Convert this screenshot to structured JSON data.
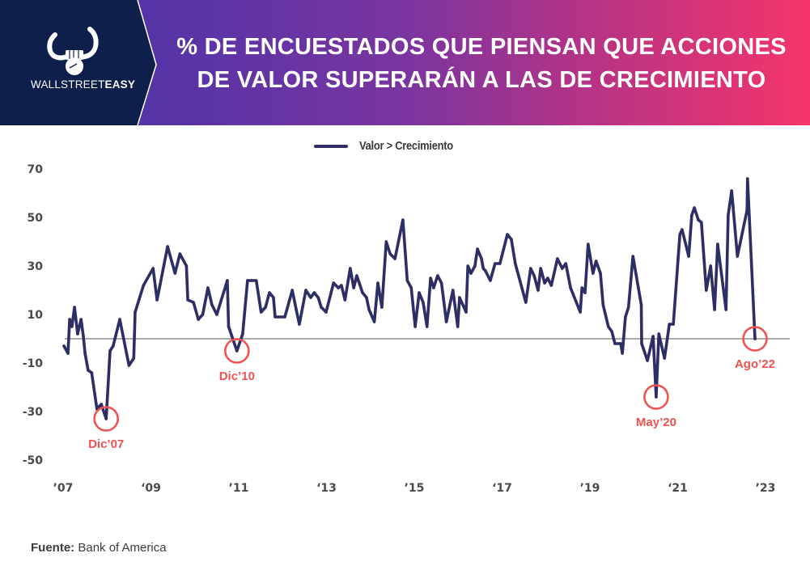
{
  "brand": {
    "logo_icon": "bull-horns-fist-icon",
    "name_light": "WALLSTREET",
    "name_bold": "EASY"
  },
  "header": {
    "title_line1": "% DE ENCUESTADOS QUE PIENSAN QUE ACCIONES",
    "title_line2": "DE VALOR SUPERARÁN A LAS DE CRECIMIENTO",
    "colors": {
      "brand_panel": "#0f1f4b",
      "gradient_start": "#4534a8",
      "gradient_mid": "#7a35a0",
      "gradient_end": "#f5356a"
    }
  },
  "source": {
    "label": "Fuente:",
    "value": "Bank of America"
  },
  "chart_data": {
    "type": "line",
    "title": "% de encuestados que piensan que acciones de valor superarán a las de crecimiento",
    "xlabel": "",
    "ylabel": "",
    "xlim": [
      2007,
      2023
    ],
    "ylim": [
      -50,
      70
    ],
    "grid": false,
    "reference_line": 0,
    "legend": {
      "position": "top-center",
      "entries": [
        "Valor > Crecimiento"
      ]
    },
    "x_ticks": [
      {
        "value": 2007,
        "label": "’07"
      },
      {
        "value": 2009,
        "label": "‘09"
      },
      {
        "value": 2011,
        "label": "’11"
      },
      {
        "value": 2013,
        "label": "‘13"
      },
      {
        "value": 2015,
        "label": "’15"
      },
      {
        "value": 2017,
        "label": "‘17"
      },
      {
        "value": 2019,
        "label": "’19"
      },
      {
        "value": 2021,
        "label": "‘21"
      },
      {
        "value": 2023,
        "label": "’23"
      }
    ],
    "y_ticks": [
      70,
      50,
      30,
      10,
      -10,
      -30,
      -50
    ],
    "colors": {
      "series": "#2d2e66",
      "annotation": "#f0524f",
      "zero_line": "#777777",
      "tick_text": "#4a4a4a"
    },
    "series": [
      {
        "name": "Valor > Crecimiento",
        "points": [
          [
            2007.02,
            -3
          ],
          [
            2007.11,
            -6
          ],
          [
            2007.15,
            8
          ],
          [
            2007.2,
            5
          ],
          [
            2007.26,
            13
          ],
          [
            2007.33,
            2
          ],
          [
            2007.41,
            8
          ],
          [
            2007.46,
            1
          ],
          [
            2007.5,
            -6
          ],
          [
            2007.57,
            -13
          ],
          [
            2007.65,
            -14
          ],
          [
            2007.77,
            -29
          ],
          [
            2007.87,
            -27
          ],
          [
            2007.98,
            -33
          ],
          [
            2008.07,
            -5
          ],
          [
            2008.14,
            -3
          ],
          [
            2008.29,
            8
          ],
          [
            2008.5,
            -11
          ],
          [
            2008.61,
            -8
          ],
          [
            2008.64,
            11
          ],
          [
            2008.83,
            22
          ],
          [
            2009.05,
            29
          ],
          [
            2009.14,
            16
          ],
          [
            2009.38,
            38
          ],
          [
            2009.55,
            27
          ],
          [
            2009.66,
            35
          ],
          [
            2009.81,
            30
          ],
          [
            2009.84,
            16
          ],
          [
            2009.97,
            15
          ],
          [
            2010.08,
            8
          ],
          [
            2010.18,
            10
          ],
          [
            2010.3,
            21
          ],
          [
            2010.39,
            14
          ],
          [
            2010.5,
            10
          ],
          [
            2010.74,
            24
          ],
          [
            2010.74,
            24
          ],
          [
            2010.77,
            5
          ],
          [
            2010.96,
            -5
          ],
          [
            2011.09,
            2
          ],
          [
            2011.2,
            24
          ],
          [
            2011.29,
            24
          ],
          [
            2011.4,
            24
          ],
          [
            2011.51,
            11
          ],
          [
            2011.61,
            13
          ],
          [
            2011.7,
            19
          ],
          [
            2011.79,
            17
          ],
          [
            2011.83,
            9
          ],
          [
            2012.05,
            9
          ],
          [
            2012.22,
            20
          ],
          [
            2012.31,
            12
          ],
          [
            2012.38,
            6
          ],
          [
            2012.53,
            20
          ],
          [
            2012.64,
            17
          ],
          [
            2012.72,
            19
          ],
          [
            2012.81,
            17
          ],
          [
            2012.88,
            13
          ],
          [
            2012.99,
            11
          ],
          [
            2013.16,
            23
          ],
          [
            2013.27,
            21
          ],
          [
            2013.34,
            22
          ],
          [
            2013.42,
            16
          ],
          [
            2013.54,
            29
          ],
          [
            2013.62,
            21
          ],
          [
            2013.69,
            26
          ],
          [
            2013.82,
            19
          ],
          [
            2013.91,
            17
          ],
          [
            2013.97,
            12
          ],
          [
            2014.09,
            7
          ],
          [
            2014.17,
            23
          ],
          [
            2014.26,
            13
          ],
          [
            2014.36,
            40
          ],
          [
            2014.45,
            35
          ],
          [
            2014.56,
            33
          ],
          [
            2014.74,
            49
          ],
          [
            2014.84,
            24
          ],
          [
            2014.93,
            21
          ],
          [
            2015.02,
            5
          ],
          [
            2015.11,
            19
          ],
          [
            2015.2,
            15
          ],
          [
            2015.29,
            5
          ],
          [
            2015.37,
            25
          ],
          [
            2015.44,
            21
          ],
          [
            2015.53,
            26
          ],
          [
            2015.62,
            23
          ],
          [
            2015.73,
            7
          ],
          [
            2015.88,
            20
          ],
          [
            2015.99,
            5
          ],
          [
            2016.03,
            17
          ],
          [
            2016.18,
            11
          ],
          [
            2016.22,
            30
          ],
          [
            2016.29,
            27
          ],
          [
            2016.38,
            30
          ],
          [
            2016.44,
            37
          ],
          [
            2016.53,
            33
          ],
          [
            2016.57,
            29
          ],
          [
            2016.62,
            28
          ],
          [
            2016.73,
            24
          ],
          [
            2016.84,
            31
          ],
          [
            2016.95,
            31
          ],
          [
            2017.12,
            43
          ],
          [
            2017.21,
            41
          ],
          [
            2017.3,
            31
          ],
          [
            2017.54,
            15
          ],
          [
            2017.65,
            29
          ],
          [
            2017.73,
            26
          ],
          [
            2017.82,
            20
          ],
          [
            2017.88,
            29
          ],
          [
            2017.97,
            23
          ],
          [
            2018.04,
            25
          ],
          [
            2018.12,
            22
          ],
          [
            2018.26,
            33
          ],
          [
            2018.37,
            29
          ],
          [
            2018.45,
            31
          ],
          [
            2018.56,
            21
          ],
          [
            2018.78,
            11
          ],
          [
            2018.82,
            21
          ],
          [
            2018.89,
            19
          ],
          [
            2018.96,
            39
          ],
          [
            2019.07,
            27
          ],
          [
            2019.14,
            32
          ],
          [
            2019.24,
            27
          ],
          [
            2019.3,
            14
          ],
          [
            2019.42,
            5
          ],
          [
            2019.5,
            3
          ],
          [
            2019.57,
            -2
          ],
          [
            2019.7,
            -2
          ],
          [
            2019.74,
            -6
          ],
          [
            2019.81,
            9
          ],
          [
            2019.88,
            13
          ],
          [
            2019.98,
            34
          ],
          [
            2020.17,
            14
          ],
          [
            2020.18,
            -2
          ],
          [
            2020.31,
            -9
          ],
          [
            2020.44,
            1
          ],
          [
            2020.51,
            -24
          ],
          [
            2020.57,
            2
          ],
          [
            2020.7,
            -8
          ],
          [
            2020.81,
            6
          ],
          [
            2020.9,
            6
          ],
          [
            2021.05,
            43
          ],
          [
            2021.1,
            45
          ],
          [
            2021.25,
            34
          ],
          [
            2021.32,
            51
          ],
          [
            2021.38,
            54
          ],
          [
            2021.47,
            49
          ],
          [
            2021.54,
            48
          ],
          [
            2021.65,
            20
          ],
          [
            2021.75,
            30
          ],
          [
            2021.84,
            12
          ],
          [
            2021.91,
            39
          ],
          [
            2022.1,
            12
          ],
          [
            2022.15,
            51
          ],
          [
            2022.23,
            61
          ],
          [
            2022.36,
            34
          ],
          [
            2022.58,
            53
          ],
          [
            2022.59,
            66
          ],
          [
            2022.76,
            0
          ]
        ]
      }
    ],
    "annotations": [
      {
        "label": "Dic’07",
        "x": 2007.98,
        "y": -33
      },
      {
        "label": "Dic’10",
        "x": 2010.96,
        "y": -5
      },
      {
        "label": "May’20",
        "x": 2020.51,
        "y": -24
      },
      {
        "label": "Ago’22",
        "x": 2022.76,
        "y": 0
      }
    ]
  }
}
